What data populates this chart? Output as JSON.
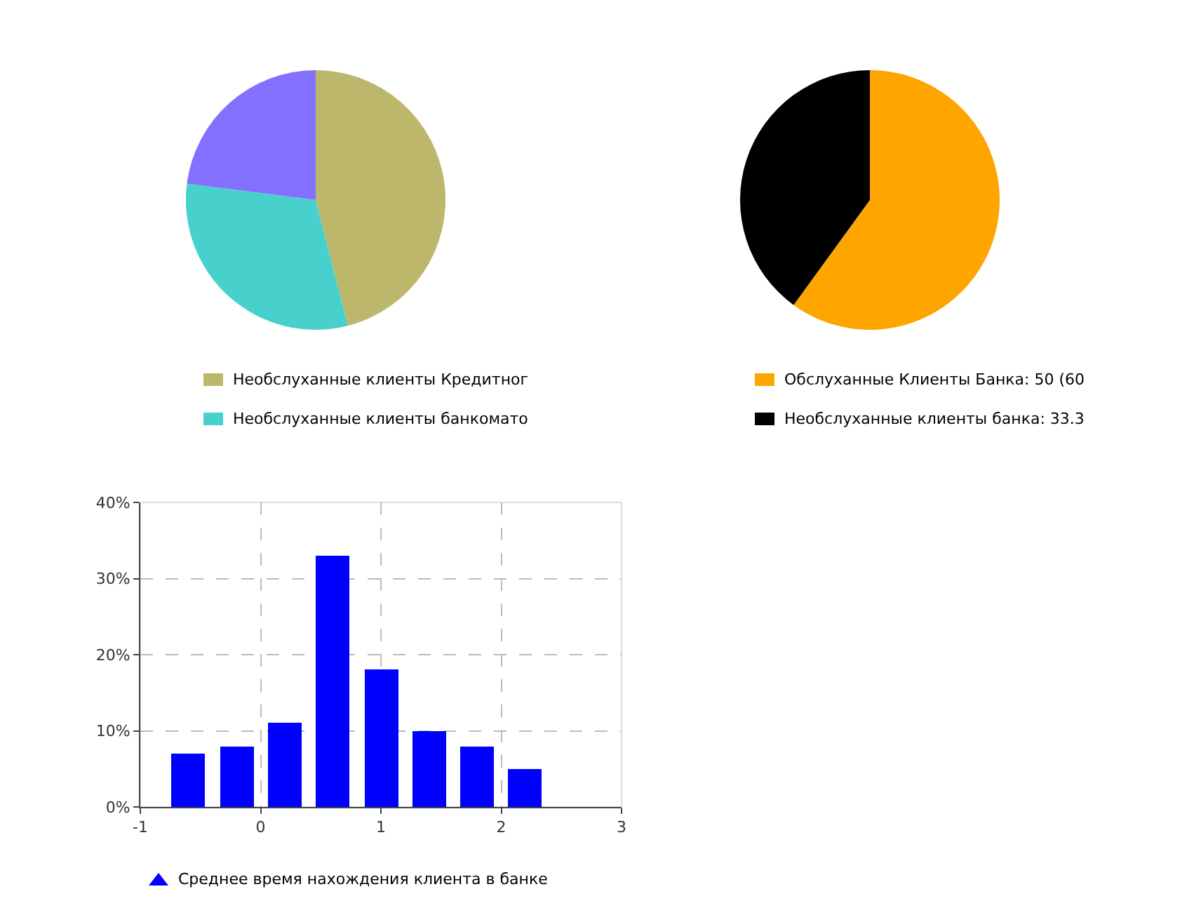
{
  "chart_data": [
    {
      "type": "pie",
      "categories": [
        "Необслуханные клиенты Кредитног",
        "Необслуханные клиенты банкомато",
        null
      ],
      "values": [
        46,
        31,
        23
      ],
      "colors": [
        "#bdb76b",
        "#48d1cc",
        "#8470ff"
      ],
      "legend": "bottom"
    },
    {
      "type": "pie",
      "categories": [
        "Обслуханные Клиенты Банка: 50 (60",
        "Необслуханные клиенты банка: 33.3"
      ],
      "values": [
        60,
        40
      ],
      "colors": [
        "#ffa500",
        "#000000"
      ],
      "legend": "bottom"
    },
    {
      "type": "histogram",
      "bins": [
        -0.8,
        -0.4,
        0,
        0.4,
        0.8,
        1.2,
        1.6,
        2.0,
        2.4
      ],
      "series": [
        {
          "name": "Среднее время нахождения клиента в банке",
          "color": "#0000ff",
          "values": [
            7,
            8,
            11,
            33,
            18,
            10,
            8,
            5
          ]
        }
      ],
      "xlim": [
        -1,
        3
      ],
      "xticks": [
        -1,
        0,
        1,
        2,
        3
      ],
      "ylim": [
        0,
        40
      ],
      "yticks": [
        {
          "value": 0,
          "label": "0%"
        },
        {
          "value": 10,
          "label": "10%"
        },
        {
          "value": 20,
          "label": "20%"
        },
        {
          "value": 30,
          "label": "30%"
        },
        {
          "value": 40,
          "label": "40%"
        }
      ],
      "grid": true,
      "legend": "bottom"
    }
  ]
}
